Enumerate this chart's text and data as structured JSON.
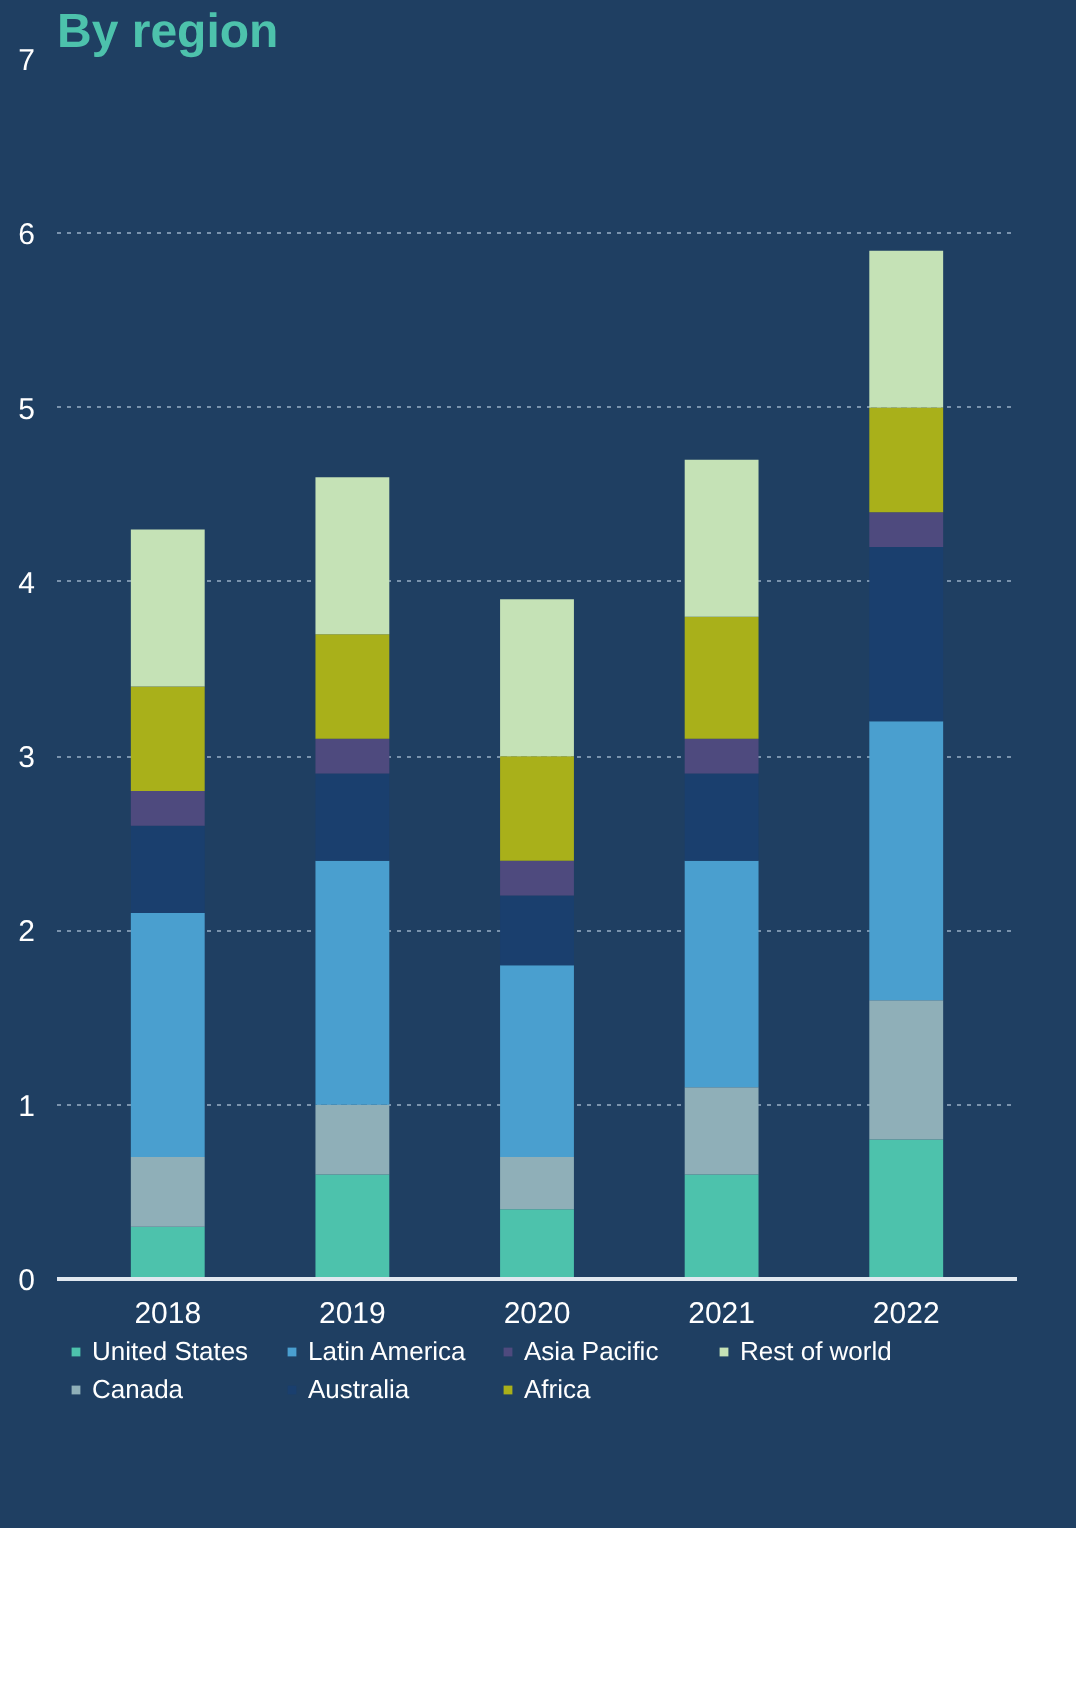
{
  "chart_data": {
    "type": "bar",
    "stacked": true,
    "title": "By region",
    "categories": [
      "2018",
      "2019",
      "2020",
      "2021",
      "2022"
    ],
    "series": [
      {
        "name": "United States",
        "color": "#4dc2ac",
        "values": [
          0.3,
          0.6,
          0.4,
          0.6,
          0.8
        ]
      },
      {
        "name": "Canada",
        "color": "#8fafb8",
        "values": [
          0.4,
          0.4,
          0.3,
          0.5,
          0.8
        ]
      },
      {
        "name": "Latin America",
        "color": "#4a9fcf",
        "values": [
          1.4,
          1.4,
          1.1,
          1.3,
          1.6
        ]
      },
      {
        "name": "Australia",
        "color": "#1a3f6e",
        "values": [
          0.5,
          0.5,
          0.4,
          0.5,
          1.0
        ]
      },
      {
        "name": "Asia Pacific",
        "color": "#4e4a7e",
        "values": [
          0.2,
          0.2,
          0.2,
          0.2,
          0.2
        ]
      },
      {
        "name": "Africa",
        "color": "#a9b01a",
        "values": [
          0.6,
          0.6,
          0.6,
          0.7,
          0.6
        ]
      },
      {
        "name": "Rest of world",
        "color": "#c5e2b6",
        "values": [
          0.9,
          0.9,
          0.9,
          0.9,
          0.9
        ]
      }
    ],
    "ylim": [
      0,
      7
    ],
    "yticks": [
      0,
      1,
      2,
      3,
      4,
      5,
      6,
      7
    ],
    "grid": "y",
    "legend": "bottom"
  }
}
